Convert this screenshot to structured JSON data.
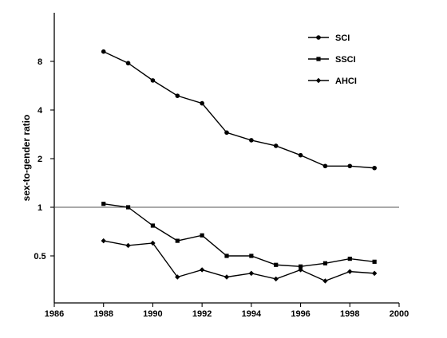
{
  "chart_data": {
    "type": "line",
    "xlabel": "",
    "ylabel": "sex-to-gender ratio",
    "x_ticks": [
      1986,
      1988,
      1990,
      1992,
      1994,
      1996,
      1998,
      2000
    ],
    "y_ticks": [
      {
        "value": 0.5,
        "label": "0.5"
      },
      {
        "value": 1,
        "label": "1"
      },
      {
        "value": 2,
        "label": "2"
      },
      {
        "value": 4,
        "label": "4"
      },
      {
        "value": 8,
        "label": "8"
      }
    ],
    "y_scale": "log2",
    "xlim": [
      1986,
      2000
    ],
    "ylim": [
      0.25,
      16
    ],
    "reference_line_y": 1,
    "grid": false,
    "legend_position": "top-right",
    "x": [
      1988,
      1989,
      1990,
      1991,
      1992,
      1993,
      1994,
      1995,
      1996,
      1997,
      1998,
      1999
    ],
    "series": [
      {
        "name": "SCI",
        "marker": "circle",
        "values": [
          9.2,
          7.8,
          6.1,
          4.9,
          4.4,
          2.9,
          2.6,
          2.4,
          2.1,
          1.8,
          1.8,
          1.75
        ]
      },
      {
        "name": "SSCI",
        "marker": "square",
        "values": [
          1.05,
          1.0,
          0.77,
          0.62,
          0.67,
          0.5,
          0.5,
          0.44,
          0.43,
          0.45,
          0.48,
          0.46
        ]
      },
      {
        "name": "AHCI",
        "marker": "diamond",
        "values": [
          0.62,
          0.58,
          0.6,
          0.37,
          0.41,
          0.37,
          0.39,
          0.36,
          0.41,
          0.35,
          0.4,
          0.39
        ]
      }
    ]
  }
}
